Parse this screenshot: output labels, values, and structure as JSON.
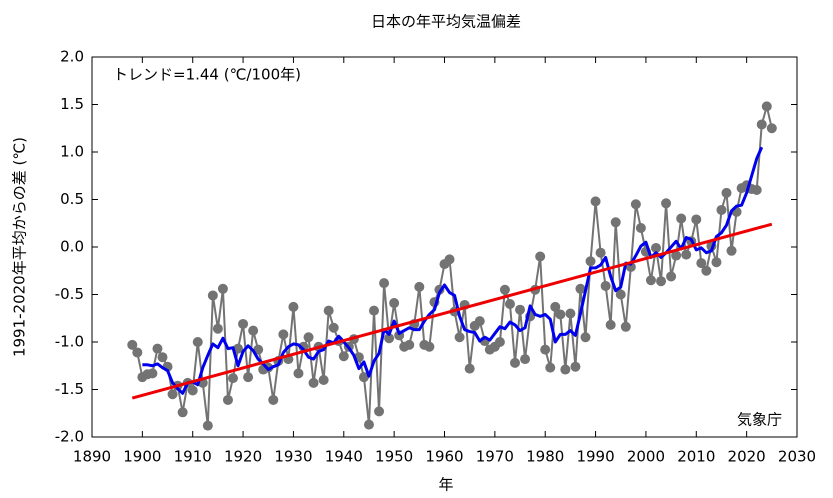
{
  "chart_data": {
    "type": "line",
    "title": "日本の年平均気温偏差",
    "annotation": "トレンド=1.44 (℃/100年)",
    "source": "気象庁",
    "xlabel": "年",
    "ylabel": "1991-2020年平均からの差 (℃)",
    "xlim": [
      1890,
      2030
    ],
    "xticks": [
      1890,
      1900,
      1910,
      1920,
      1930,
      1940,
      1950,
      1960,
      1970,
      1980,
      1990,
      2000,
      2010,
      2020,
      2030
    ],
    "ylim": [
      -2,
      2
    ],
    "yticks": [
      {
        "value": -2,
        "label": "-2.0"
      },
      -1.5,
      {
        "value": -1,
        "label": "-1.0"
      },
      -0.5,
      {
        "value": 0,
        "label": "0.0"
      },
      0.5,
      {
        "value": 1,
        "label": "1.0"
      },
      1.5,
      {
        "value": 2,
        "label": "2.0"
      }
    ],
    "x": [
      1898,
      1899,
      1900,
      1901,
      1902,
      1903,
      1904,
      1905,
      1906,
      1907,
      1908,
      1909,
      1910,
      1911,
      1912,
      1913,
      1914,
      1915,
      1916,
      1917,
      1918,
      1919,
      1920,
      1921,
      1922,
      1923,
      1924,
      1925,
      1926,
      1927,
      1928,
      1929,
      1930,
      1931,
      1932,
      1933,
      1934,
      1935,
      1936,
      1937,
      1938,
      1939,
      1940,
      1941,
      1942,
      1943,
      1944,
      1945,
      1946,
      1947,
      1948,
      1949,
      1950,
      1951,
      1952,
      1953,
      1954,
      1955,
      1956,
      1957,
      1958,
      1959,
      1960,
      1961,
      1962,
      1963,
      1964,
      1965,
      1966,
      1967,
      1968,
      1969,
      1970,
      1971,
      1972,
      1973,
      1974,
      1975,
      1976,
      1977,
      1978,
      1979,
      1980,
      1981,
      1982,
      1983,
      1984,
      1985,
      1986,
      1987,
      1988,
      1989,
      1990,
      1991,
      1992,
      1993,
      1994,
      1995,
      1996,
      1997,
      1998,
      1999,
      2000,
      2001,
      2002,
      2003,
      2004,
      2005,
      2006,
      2007,
      2008,
      2009,
      2010,
      2011,
      2012,
      2013,
      2014,
      2015,
      2016,
      2017,
      2018,
      2019,
      2020,
      2021,
      2022,
      2023,
      2024,
      2025
    ],
    "series": [
      {
        "color": "#737373",
        "values": [
          -1.03,
          -1.11,
          -1.37,
          -1.34,
          -1.33,
          -1.07,
          -1.16,
          -1.26,
          -1.55,
          -1.46,
          -1.74,
          -1.43,
          -1.51,
          -1.0,
          -1.43,
          -1.88,
          -0.51,
          -0.86,
          -0.44,
          -1.61,
          -1.38,
          -1.07,
          -0.81,
          -1.37,
          -0.88,
          -1.08,
          -1.29,
          -1.27,
          -1.61,
          -1.2,
          -0.92,
          -1.18,
          -0.63,
          -1.33,
          -1.05,
          -0.95,
          -1.43,
          -1.05,
          -1.4,
          -0.67,
          -0.85,
          -0.99,
          -1.15,
          -1.05,
          -0.97,
          -1.16,
          -1.37,
          -1.87,
          -0.67,
          -1.73,
          -0.38,
          -0.96,
          -0.59,
          -0.93,
          -1.05,
          -1.03,
          -0.81,
          -0.42,
          -1.03,
          -1.05,
          -0.58,
          -0.45,
          -0.18,
          -0.13,
          -0.68,
          -0.95,
          -0.61,
          -1.28,
          -0.83,
          -0.78,
          -0.99,
          -1.08,
          -1.05,
          -1.0,
          -0.45,
          -0.6,
          -1.22,
          -0.66,
          -1.18,
          -0.73,
          -0.45,
          -0.1,
          -1.08,
          -1.27,
          -0.63,
          -0.71,
          -1.29,
          -0.7,
          -1.26,
          -0.44,
          -0.95,
          -0.15,
          0.48,
          -0.06,
          -0.41,
          -0.82,
          0.26,
          -0.5,
          -0.84,
          -0.21,
          0.45,
          0.2,
          -0.05,
          -0.35,
          -0.01,
          -0.36,
          0.46,
          -0.31,
          -0.09,
          0.3,
          -0.08,
          0.06,
          0.29,
          -0.17,
          -0.25,
          0.01,
          -0.16,
          0.39,
          0.57,
          -0.04,
          0.37,
          0.62,
          0.65,
          0.61,
          0.6,
          1.29,
          1.48,
          1.25
        ]
      },
      {
        "color": "#0000ee",
        "values": [
          null,
          null,
          -1.24,
          -1.24,
          -1.25,
          -1.23,
          -1.27,
          -1.3,
          -1.43,
          -1.49,
          -1.54,
          -1.43,
          -1.42,
          -1.45,
          -1.27,
          -1.14,
          -1.02,
          -1.06,
          -0.96,
          -1.07,
          -1.06,
          -1.25,
          -1.1,
          -1.04,
          -1.09,
          -1.18,
          -1.23,
          -1.29,
          -1.26,
          -1.24,
          -1.11,
          -1.05,
          -1.02,
          -1.03,
          -1.08,
          -1.16,
          -1.18,
          -1.1,
          -1.08,
          -0.99,
          -1.01,
          -0.94,
          -1.0,
          -1.06,
          -1.14,
          -1.28,
          -1.21,
          -1.36,
          -1.2,
          -1.12,
          -0.87,
          -0.92,
          -0.78,
          -0.91,
          -0.88,
          -0.85,
          -0.87,
          -0.87,
          -0.78,
          -0.71,
          -0.66,
          -0.48,
          -0.4,
          -0.48,
          -0.51,
          -0.73,
          -0.87,
          -0.89,
          -0.9,
          -0.99,
          -0.95,
          -0.98,
          -0.91,
          -0.84,
          -0.86,
          -0.79,
          -0.82,
          -0.88,
          -0.85,
          -0.62,
          -0.71,
          -0.73,
          -0.71,
          -0.76,
          -1.0,
          -0.92,
          -0.92,
          -0.88,
          -0.93,
          -0.7,
          -0.46,
          -0.22,
          -0.22,
          -0.19,
          -0.11,
          -0.31,
          -0.46,
          -0.42,
          -0.17,
          -0.18,
          -0.09,
          0.01,
          0.05,
          -0.11,
          -0.06,
          -0.11,
          -0.06,
          0.0,
          0.06,
          -0.02,
          0.1,
          0.08,
          -0.03,
          -0.01,
          -0.06,
          -0.04,
          0.11,
          0.15,
          0.23,
          0.38,
          0.43,
          0.44,
          0.57,
          0.75,
          0.93,
          1.05,
          null,
          null
        ]
      }
    ],
    "trend": {
      "color": "#ee0000",
      "x": [
        1898,
        2025
      ],
      "values": [
        -1.59,
        0.24
      ]
    }
  }
}
